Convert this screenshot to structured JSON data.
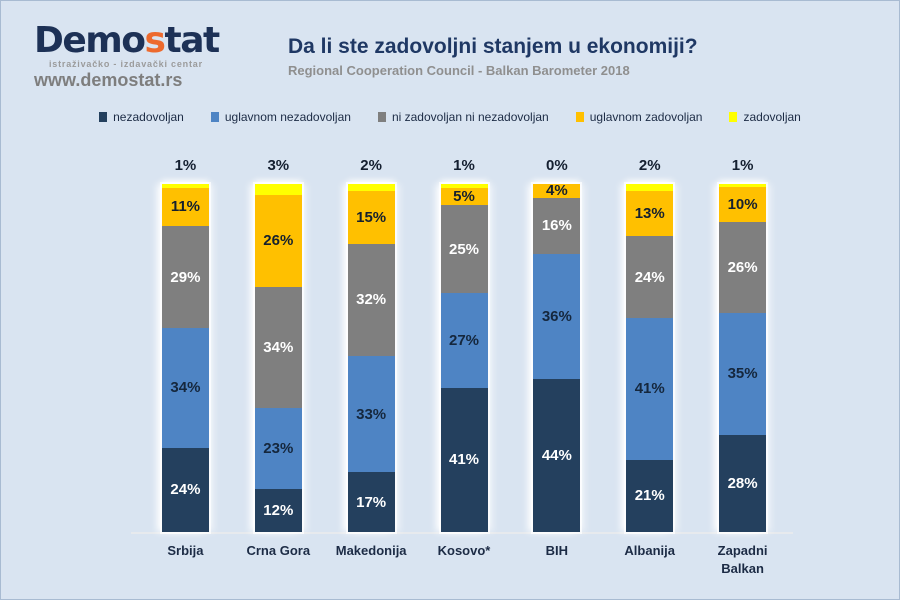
{
  "page": {
    "background": "#D9E4F1",
    "border_color": "#A8BBD2"
  },
  "header": {
    "logo": {
      "part1": "Demo",
      "accent_letter": "s",
      "part2": "tat",
      "accent_color": "#ED6A2E",
      "navy_color": "#1D3156",
      "tagline": "istraživačko - izdavački  centar",
      "url": "www.demostat.rs"
    },
    "title": "Da li ste zadovoljni stanjem u ekonomiji?",
    "subtitle": "Regional Cooperation Council - Balkan Barometer 2018"
  },
  "legend": {
    "position": "top-center",
    "items": [
      {
        "label": "nezadovoljan",
        "color": "#24405E"
      },
      {
        "label": "uglavnom nezadovoljan",
        "color": "#4E84C4"
      },
      {
        "label": "ni zadovoljan ni nezadovoljan",
        "color": "#7F7F7F"
      },
      {
        "label": "uglavnom zadovoljan",
        "color": "#FFC000"
      },
      {
        "label": "zadovoljan",
        "color": "#FFFF00"
      }
    ]
  },
  "chart_data": {
    "type": "bar",
    "subtype": "stacked-100-percent-column",
    "title": "Da li ste zadovoljni stanjem u ekonomiji?",
    "subtitle": "Regional Cooperation Council - Balkan Barometer 2018",
    "xlabel": "",
    "ylabel": "",
    "grid": false,
    "legend_position": "top",
    "unit": "%",
    "categories": [
      "Srbija",
      "Crna Gora",
      "Makedonija",
      "Kosovo*",
      "BIH",
      "Albanija",
      "Zapadni Balkan"
    ],
    "series": [
      {
        "name": "nezadovoljan",
        "color": "#24405E",
        "label_color": "#FFFFFF",
        "values": [
          24,
          12,
          17,
          41,
          44,
          21,
          28
        ]
      },
      {
        "name": "uglavnom nezadovoljan",
        "color": "#4E84C4",
        "label_color": "#15273D",
        "values": [
          34,
          23,
          33,
          27,
          36,
          41,
          35
        ]
      },
      {
        "name": "ni zadovoljan ni nezadovoljan",
        "color": "#7F7F7F",
        "label_color": "#FFFFFF",
        "values": [
          29,
          34,
          32,
          25,
          16,
          24,
          26
        ]
      },
      {
        "name": "uglavnom zadovoljan",
        "color": "#FFC000",
        "label_color": "#15202E",
        "values": [
          11,
          26,
          15,
          5,
          4,
          13,
          10
        ]
      },
      {
        "name": "zadovoljan",
        "color": "#FFFF00",
        "label_color": "#141F30",
        "values": [
          1,
          3,
          2,
          1,
          0,
          2,
          1
        ]
      }
    ],
    "outside_labeled_series": "zadovoljan",
    "inside_label_min_value": 4
  }
}
